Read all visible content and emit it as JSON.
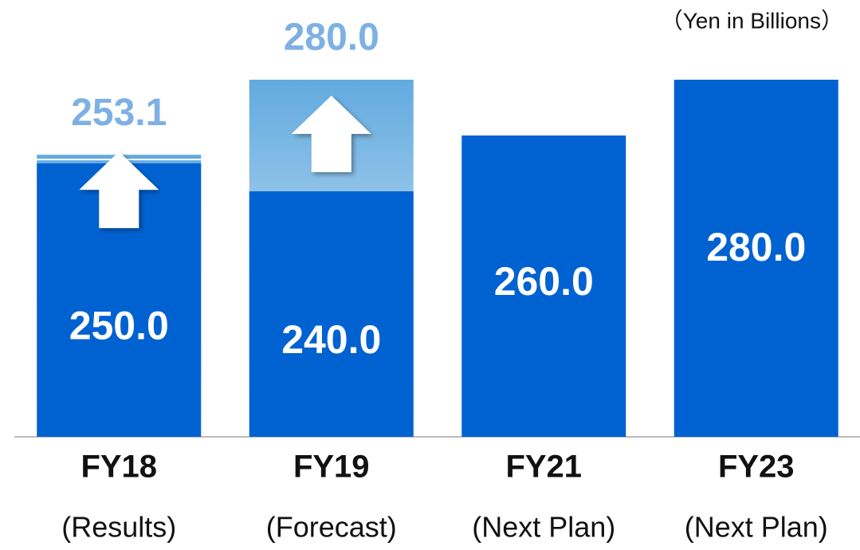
{
  "chart_data": {
    "type": "bar",
    "unit": "（Yen in Billions）",
    "categories": [
      "FY18",
      "FY19",
      "FY21",
      "FY23"
    ],
    "subcategories": [
      "(Results)",
      "(Forecast)",
      "(Next Plan)",
      "(Next Plan)"
    ],
    "values": [
      250.0,
      240.0,
      260.0,
      280.0
    ],
    "value_labels": [
      "250.0",
      "240.0",
      "260.0",
      "280.0"
    ],
    "targets": [
      253.1,
      280.0,
      null,
      null
    ],
    "target_labels": [
      "253.1",
      "280.0",
      null,
      null
    ],
    "color": "#0062d1",
    "target_color": "#62aadf",
    "target_label_color": "#7eb0e4",
    "ylim": [
      152,
      280
    ]
  }
}
